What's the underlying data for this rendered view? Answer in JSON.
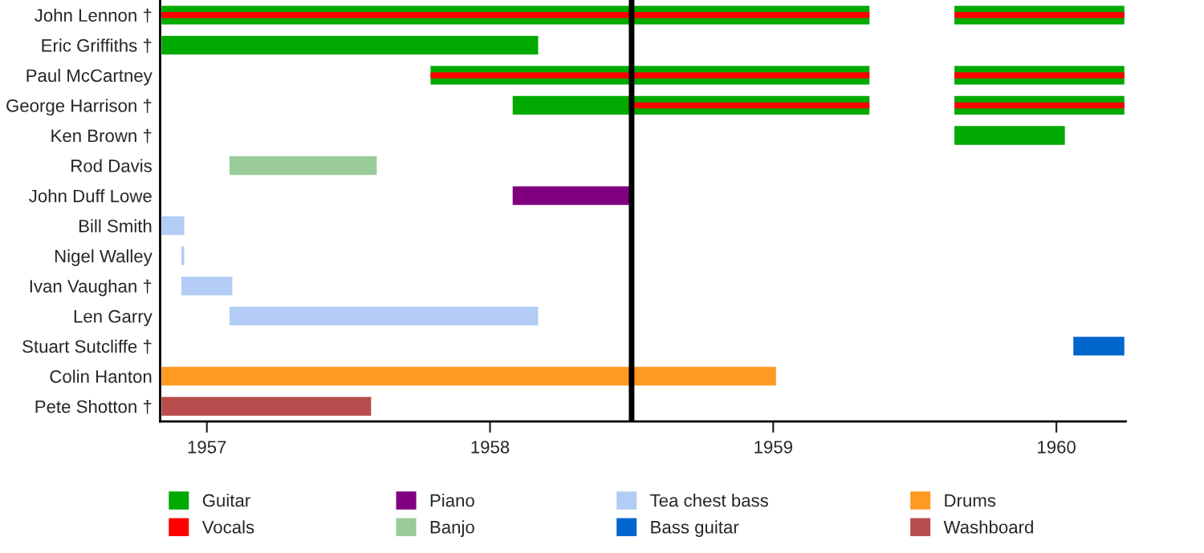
{
  "chart_data": {
    "type": "bar",
    "orientation": "horizontal",
    "categories": [
      "John Lennon †",
      "Eric Griffiths †",
      "Paul McCartney",
      "George Harrison †",
      "Ken Brown †",
      "Rod Davis",
      "John Duff Lowe",
      "Bill Smith",
      "Nigel Walley",
      "Ivan Vaughan †",
      "Len Garry",
      "Stuart Sutcliffe †",
      "Colin Hanton",
      "Pete Shotton †"
    ],
    "series": [
      {
        "name": "Guitar",
        "color": "#00aa00",
        "base": [
          1956.84,
          1956.84,
          1957.79,
          1958.08,
          1959.64,
          null,
          null,
          null,
          null,
          null,
          null,
          null,
          null,
          null
        ],
        "values": [
          2.5,
          1.33,
          1.55,
          1.26,
          0.39,
          null,
          null,
          null,
          null,
          null,
          null,
          null,
          null,
          null
        ]
      },
      {
        "color": "#00aa00",
        "base": [
          1959.64,
          null,
          1959.64,
          1959.64,
          null,
          null,
          null,
          null,
          null,
          null,
          null,
          null,
          null,
          null
        ],
        "values": [
          0.6,
          null,
          0.6,
          0.6,
          null,
          null,
          null,
          null,
          null,
          null,
          null,
          null,
          null,
          null
        ]
      },
      {
        "name": "Vocals",
        "color": "#ff0000",
        "base": [
          1956.84,
          null,
          1957.79,
          1958.5,
          null,
          null,
          null,
          null,
          null,
          null,
          null,
          null,
          null,
          null
        ],
        "values": [
          2.5,
          null,
          1.55,
          0.84,
          null,
          null,
          null,
          null,
          null,
          null,
          null,
          null,
          null,
          null
        ]
      },
      {
        "color": "#ff0000",
        "base": [
          1959.64,
          null,
          1959.64,
          1959.64,
          null,
          null,
          null,
          null,
          null,
          null,
          null,
          null,
          null,
          null
        ],
        "values": [
          0.6,
          null,
          0.6,
          0.6,
          null,
          null,
          null,
          null,
          null,
          null,
          null,
          null,
          null,
          null
        ]
      },
      {
        "name": "Piano",
        "color": "#800080",
        "base": [
          null,
          null,
          null,
          null,
          null,
          null,
          1958.08,
          null,
          null,
          null,
          null,
          null,
          null,
          null
        ],
        "values": [
          null,
          null,
          null,
          null,
          null,
          null,
          0.42,
          null,
          null,
          null,
          null,
          null,
          null,
          null
        ]
      },
      {
        "name": "Banjo",
        "color": "#99cc99",
        "base": [
          null,
          null,
          null,
          null,
          null,
          1957.08,
          null,
          null,
          null,
          null,
          null,
          null,
          null,
          null
        ],
        "values": [
          null,
          null,
          null,
          null,
          null,
          0.52,
          null,
          null,
          null,
          null,
          null,
          null,
          null,
          null
        ]
      },
      {
        "name": "Tea chest bass",
        "color": "#b3ccf5",
        "base": [
          null,
          null,
          null,
          null,
          null,
          null,
          null,
          1956.84,
          1956.91,
          1956.91,
          1957.08,
          null,
          null,
          null
        ],
        "values": [
          null,
          null,
          null,
          null,
          null,
          null,
          null,
          0.08,
          0.01,
          0.18,
          1.09,
          null,
          null,
          null
        ]
      },
      {
        "name": "Bass guitar",
        "color": "#0066cc",
        "base": [
          null,
          null,
          null,
          null,
          null,
          null,
          null,
          null,
          null,
          null,
          null,
          1960.06,
          null,
          null
        ],
        "values": [
          null,
          null,
          null,
          null,
          null,
          null,
          null,
          null,
          null,
          null,
          null,
          0.18,
          null,
          null
        ]
      },
      {
        "name": "Drums",
        "color": "#ff9922",
        "base": [
          null,
          null,
          null,
          null,
          null,
          null,
          null,
          null,
          null,
          null,
          null,
          null,
          1956.84,
          null
        ],
        "values": [
          null,
          null,
          null,
          null,
          null,
          null,
          null,
          null,
          null,
          null,
          null,
          null,
          2.17,
          null
        ]
      },
      {
        "name": "Washboard",
        "color": "#b84d4d",
        "base": [
          null,
          null,
          null,
          null,
          null,
          null,
          null,
          null,
          null,
          null,
          null,
          null,
          null,
          1956.84
        ],
        "values": [
          null,
          null,
          null,
          null,
          null,
          null,
          null,
          null,
          null,
          null,
          null,
          null,
          null,
          0.74
        ]
      }
    ],
    "xlim": [
      1956.835,
      1960.245
    ],
    "xticks": [
      1957,
      1958,
      1959,
      1960
    ],
    "ref_lines": [
      {
        "axis": "x",
        "value": 1958.5,
        "color": "#000000"
      }
    ],
    "grid": false,
    "legend": "bottom"
  }
}
